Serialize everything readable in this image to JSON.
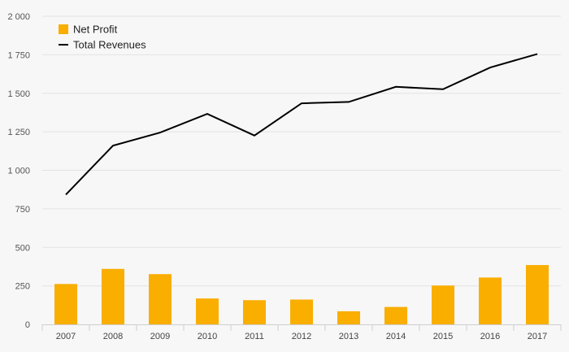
{
  "chart_data": {
    "type": "bar+line",
    "categories": [
      "2007",
      "2008",
      "2009",
      "2010",
      "2011",
      "2012",
      "2013",
      "2014",
      "2015",
      "2016",
      "2017"
    ],
    "series": [
      {
        "name": "Net Profit",
        "type": "bar",
        "color": "#f9ae00",
        "values": [
          262,
          360,
          326,
          168,
          157,
          161,
          85,
          113,
          252,
          304,
          385
        ]
      },
      {
        "name": "Total Revenues",
        "type": "line",
        "color": "#000000",
        "values": [
          842,
          1160,
          1245,
          1366,
          1226,
          1435,
          1444,
          1542,
          1526,
          1667,
          1755
        ]
      }
    ],
    "ylim": [
      0,
      2000
    ],
    "yticks": [
      0,
      250,
      500,
      750,
      1000,
      1250,
      1500,
      1750,
      2000
    ],
    "ytick_labels": [
      "0",
      "250",
      "500",
      "750",
      "1 000",
      "1 250",
      "1 500",
      "1 750",
      "2 000"
    ],
    "grid": true,
    "legend_position": "top-left",
    "title": "",
    "xlabel": "",
    "ylabel": ""
  }
}
